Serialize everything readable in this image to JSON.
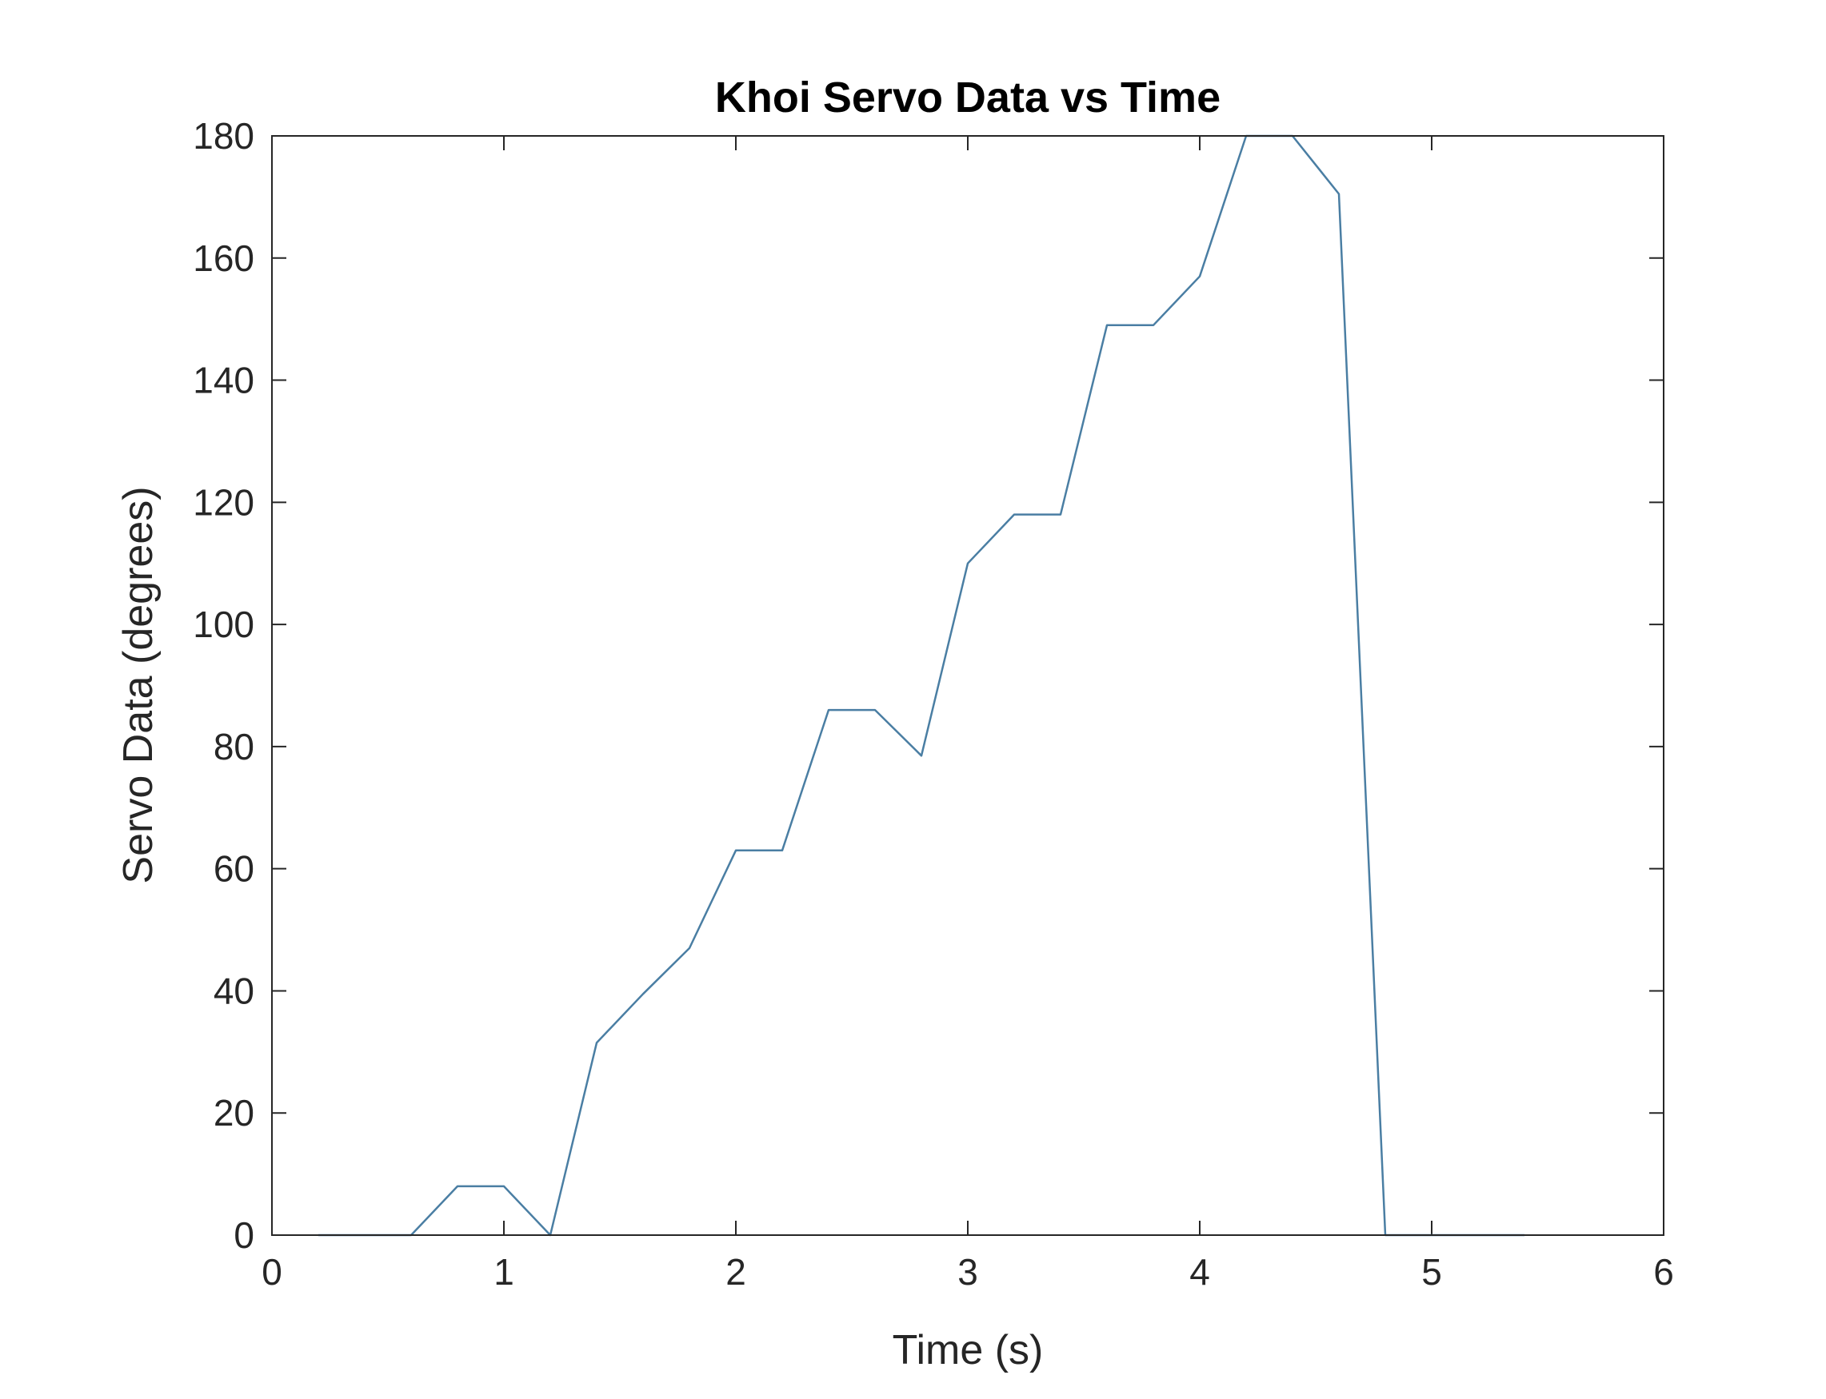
{
  "chart_data": {
    "type": "line",
    "title": "Khoi Servo Data vs Time",
    "xlabel": "Time (s)",
    "ylabel": "Servo Data (degrees)",
    "xlim": [
      0,
      6
    ],
    "ylim": [
      0,
      180
    ],
    "xticks": [
      "0",
      "1",
      "2",
      "3",
      "4",
      "5",
      "6"
    ],
    "yticks": [
      "0",
      "20",
      "40",
      "60",
      "80",
      "100",
      "120",
      "140",
      "160",
      "180"
    ],
    "grid": false,
    "colors": {
      "line": "#4a7ea3",
      "axes": "#262626",
      "background": "#ffffff"
    },
    "series": [
      {
        "x": [
          0.2,
          0.4,
          0.6,
          0.8,
          1.0,
          1.2,
          1.4,
          1.6,
          1.8,
          2.0,
          2.2,
          2.4,
          2.6,
          2.8,
          3.0,
          3.2,
          3.4,
          3.6,
          3.8,
          4.0,
          4.2,
          4.4,
          4.6,
          4.8,
          5.0,
          5.2,
          5.4
        ],
        "y": [
          0,
          0,
          0,
          8,
          8,
          0,
          31.5,
          39.5,
          47,
          63,
          63,
          86,
          86,
          78.5,
          110,
          118,
          118,
          149,
          149,
          157,
          180,
          180,
          170.5,
          0,
          0,
          0,
          0
        ]
      }
    ]
  }
}
